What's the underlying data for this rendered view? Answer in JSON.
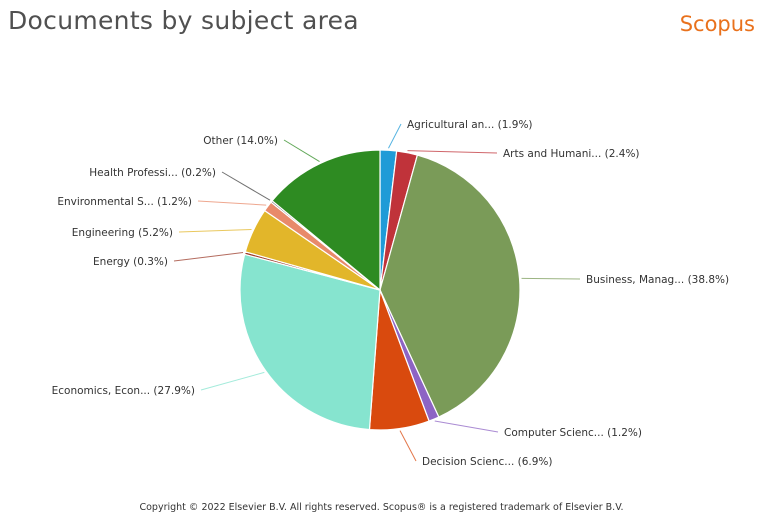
{
  "header": {
    "title": "Documents by subject area",
    "brand": "Scopus"
  },
  "footer": {
    "copyright": "Copyright © 2022 Elsevier B.V. All rights reserved. Scopus® is a registered trademark of Elsevier B.V."
  },
  "chart_data": {
    "type": "pie",
    "title": "Documents by subject area",
    "slices": [
      {
        "label": "Agricultural an... (1.9%)",
        "value": 1.9,
        "color": "#1f9bd7"
      },
      {
        "label": "Arts and Humani... (2.4%)",
        "value": 2.4,
        "color": "#c0333a"
      },
      {
        "label": "Business, Manag... (38.8%)",
        "value": 38.8,
        "color": "#7a9b58"
      },
      {
        "label": "Computer Scienc... (1.2%)",
        "value": 1.2,
        "color": "#8d64c4"
      },
      {
        "label": "Decision Scienc... (6.9%)",
        "value": 6.9,
        "color": "#d94a0e"
      },
      {
        "label": "Economics, Econ... (27.9%)",
        "value": 27.9,
        "color": "#86e4cf"
      },
      {
        "label": "Energy (0.3%)",
        "value": 0.3,
        "color": "#9b3b2a"
      },
      {
        "label": "Engineering (5.2%)",
        "value": 5.2,
        "color": "#e2b62a"
      },
      {
        "label": "Environmental S... (1.2%)",
        "value": 1.2,
        "color": "#e88a6a"
      },
      {
        "label": "Health Professi... (0.2%)",
        "value": 0.2,
        "color": "#404040"
      },
      {
        "label": "Other (14.0%)",
        "value": 14.0,
        "color": "#2e8b22"
      }
    ]
  }
}
